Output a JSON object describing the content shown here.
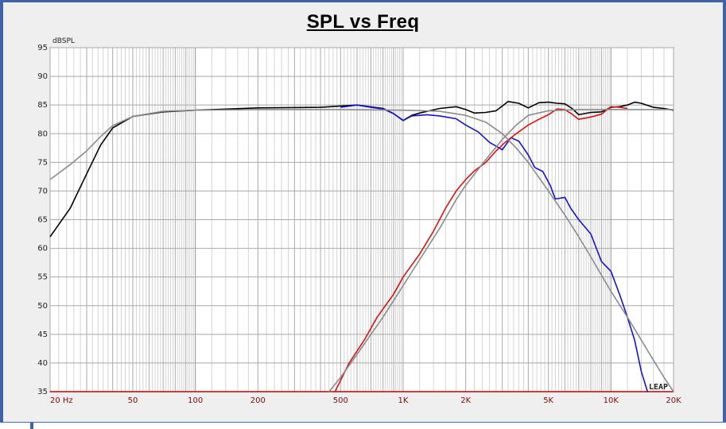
{
  "chart_data": {
    "type": "line",
    "title": "SPL vs Freq",
    "ylabel": "dBSPL",
    "xlabel": "",
    "xscale": "log",
    "xlim": [
      20,
      20000
    ],
    "ylim": [
      35,
      95
    ],
    "y_ticks": [
      95,
      90,
      85,
      80,
      75,
      70,
      65,
      60,
      55,
      50,
      45,
      40,
      35
    ],
    "x_tick_labels": [
      {
        "value": 20,
        "label": "20  Hz"
      },
      {
        "value": 50,
        "label": "50"
      },
      {
        "value": 100,
        "label": "100"
      },
      {
        "value": 200,
        "label": "200"
      },
      {
        "value": 500,
        "label": "500"
      },
      {
        "value": 1000,
        "label": "1K"
      },
      {
        "value": 2000,
        "label": "2K"
      },
      {
        "value": 5000,
        "label": "5K"
      },
      {
        "value": 10000,
        "label": "10K"
      },
      {
        "value": 20000,
        "label": "20K"
      }
    ],
    "watermark": "LEAP",
    "grid": true,
    "series": [
      {
        "color": "#000000",
        "points": [
          [
            20,
            62
          ],
          [
            25,
            67
          ],
          [
            30,
            73
          ],
          [
            35,
            78
          ],
          [
            40,
            81
          ],
          [
            50,
            83
          ],
          [
            70,
            83.8
          ],
          [
            100,
            84.1
          ],
          [
            200,
            84.5
          ],
          [
            400,
            84.6
          ],
          [
            600,
            85
          ],
          [
            800,
            84.4
          ],
          [
            900,
            83.5
          ],
          [
            1000,
            82.3
          ],
          [
            1100,
            83.2
          ],
          [
            1200,
            83.6
          ],
          [
            1500,
            84.4
          ],
          [
            1800,
            84.7
          ],
          [
            2000,
            84.2
          ],
          [
            2200,
            83.6
          ],
          [
            2500,
            83.7
          ],
          [
            2800,
            84
          ],
          [
            3200,
            85.6
          ],
          [
            3600,
            85.3
          ],
          [
            4000,
            84.5
          ],
          [
            4500,
            85.4
          ],
          [
            5000,
            85.5
          ],
          [
            5500,
            85.3
          ],
          [
            6000,
            85.2
          ],
          [
            6500,
            84.4
          ],
          [
            7000,
            83.3
          ],
          [
            8000,
            83.7
          ],
          [
            9000,
            83.8
          ],
          [
            10000,
            84.6
          ],
          [
            11000,
            84.7
          ],
          [
            12000,
            85
          ],
          [
            13000,
            85.5
          ],
          [
            14000,
            85.3
          ],
          [
            16000,
            84.6
          ],
          [
            18000,
            84.4
          ],
          [
            20000,
            84.1
          ]
        ]
      },
      {
        "color": "#1414c8",
        "points": [
          [
            500,
            84.6
          ],
          [
            600,
            85
          ],
          [
            700,
            84.6
          ],
          [
            800,
            84.3
          ],
          [
            900,
            83.5
          ],
          [
            1000,
            82.3
          ],
          [
            1100,
            83.1
          ],
          [
            1300,
            83.3
          ],
          [
            1500,
            83.1
          ],
          [
            1800,
            82.6
          ],
          [
            2000,
            81.5
          ],
          [
            2300,
            80.3
          ],
          [
            2600,
            78.5
          ],
          [
            3000,
            77.2
          ],
          [
            3300,
            79.3
          ],
          [
            3600,
            78.7
          ],
          [
            4000,
            76.3
          ],
          [
            4300,
            74.1
          ],
          [
            4700,
            73.4
          ],
          [
            5100,
            71
          ],
          [
            5400,
            68.6
          ],
          [
            6000,
            68.9
          ],
          [
            6400,
            67
          ],
          [
            7000,
            65
          ],
          [
            8000,
            62.5
          ],
          [
            9000,
            57.7
          ],
          [
            10000,
            56
          ],
          [
            11000,
            52
          ],
          [
            12000,
            48
          ],
          [
            13000,
            44
          ],
          [
            14000,
            38.5
          ],
          [
            15000,
            35
          ]
        ]
      },
      {
        "color": "#d41414",
        "points": [
          [
            470,
            35
          ],
          [
            550,
            40
          ],
          [
            650,
            44
          ],
          [
            750,
            48
          ],
          [
            900,
            52
          ],
          [
            1000,
            55
          ],
          [
            1200,
            59
          ],
          [
            1400,
            63
          ],
          [
            1600,
            67
          ],
          [
            1800,
            70
          ],
          [
            2000,
            72
          ],
          [
            2200,
            73.5
          ],
          [
            2500,
            75
          ],
          [
            2800,
            77
          ],
          [
            3100,
            78.5
          ],
          [
            3500,
            80
          ],
          [
            4000,
            81.5
          ],
          [
            4500,
            82.5
          ],
          [
            5000,
            83.3
          ],
          [
            5500,
            84.3
          ],
          [
            6000,
            84.2
          ],
          [
            6500,
            83.4
          ],
          [
            7000,
            82.5
          ],
          [
            8000,
            82.9
          ],
          [
            9000,
            83.4
          ],
          [
            10000,
            84.7
          ],
          [
            11000,
            84.6
          ],
          [
            12000,
            84.4
          ]
        ]
      },
      {
        "color": "#8c8c8c",
        "points": [
          [
            20,
            72
          ],
          [
            25,
            74.6
          ],
          [
            30,
            77
          ],
          [
            35,
            79.5
          ],
          [
            40,
            81.4
          ],
          [
            50,
            83
          ],
          [
            70,
            83.9
          ],
          [
            100,
            84.1
          ],
          [
            200,
            84.2
          ],
          [
            500,
            84.2
          ],
          [
            1000,
            84.1
          ],
          [
            1500,
            83.9
          ],
          [
            2000,
            83.2
          ],
          [
            2500,
            82
          ],
          [
            3000,
            80
          ],
          [
            3500,
            77.5
          ],
          [
            4000,
            75
          ],
          [
            5000,
            70
          ],
          [
            6000,
            65.8
          ],
          [
            7000,
            62
          ],
          [
            8000,
            58.5
          ],
          [
            10000,
            52.5
          ],
          [
            12000,
            48
          ],
          [
            14000,
            44
          ],
          [
            16000,
            40.5
          ],
          [
            18000,
            37.5
          ],
          [
            20000,
            35
          ]
        ]
      },
      {
        "color": "#8c8c8c",
        "points": [
          [
            440,
            35
          ],
          [
            500,
            37.5
          ],
          [
            600,
            41.5
          ],
          [
            700,
            45
          ],
          [
            800,
            48
          ],
          [
            1000,
            53.5
          ],
          [
            1200,
            58
          ],
          [
            1500,
            63.5
          ],
          [
            1800,
            68.5
          ],
          [
            2000,
            71
          ],
          [
            2500,
            75.5
          ],
          [
            3000,
            79
          ],
          [
            3500,
            81.5
          ],
          [
            4000,
            83.2
          ],
          [
            5000,
            84
          ],
          [
            7000,
            84.2
          ],
          [
            10000,
            84.2
          ],
          [
            20000,
            84.2
          ]
        ]
      }
    ]
  }
}
